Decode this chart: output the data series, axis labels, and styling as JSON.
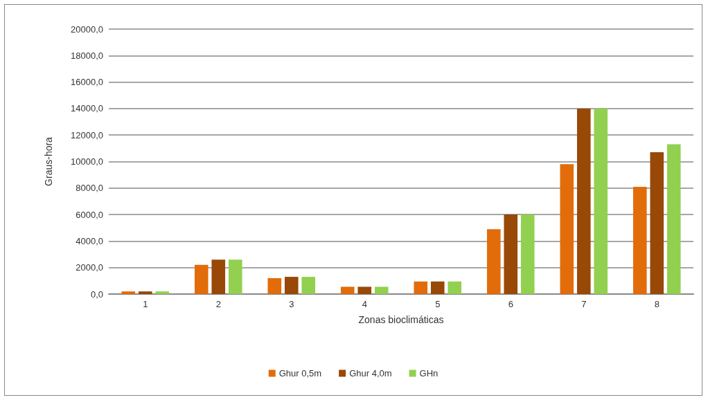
{
  "chart_data": {
    "type": "bar",
    "xlabel": "Zonas bioclimáticas",
    "ylabel": "Graus-hora",
    "categories": [
      "1",
      "2",
      "3",
      "4",
      "5",
      "6",
      "7",
      "8"
    ],
    "series": [
      {
        "name": "Ghur 0,5m",
        "color": "#e36c0a",
        "values": [
          200,
          2200,
          1200,
          550,
          950,
          4900,
          9800,
          8100
        ]
      },
      {
        "name": "Ghur 4,0m",
        "color": "#984807",
        "values": [
          200,
          2600,
          1300,
          550,
          950,
          6000,
          14000,
          10700
        ]
      },
      {
        "name": "GHn",
        "color": "#92d050",
        "values": [
          200,
          2600,
          1300,
          550,
          950,
          6000,
          14000,
          11300
        ]
      }
    ],
    "ylim": [
      0,
      20000
    ],
    "yticks": [
      {
        "value": 0,
        "label": "0,0"
      },
      {
        "value": 2000,
        "label": "2000,0"
      },
      {
        "value": 4000,
        "label": "4000,0"
      },
      {
        "value": 6000,
        "label": "6000,0"
      },
      {
        "value": 8000,
        "label": "8000,0"
      },
      {
        "value": 10000,
        "label": "10000,0"
      },
      {
        "value": 12000,
        "label": "12000,0"
      },
      {
        "value": 14000,
        "label": "14000,0"
      },
      {
        "value": 16000,
        "label": "16000,0"
      },
      {
        "value": 18000,
        "label": "18000,0"
      },
      {
        "value": 20000,
        "label": "20000,0"
      }
    ],
    "grid": "y",
    "legend": "bottom"
  }
}
